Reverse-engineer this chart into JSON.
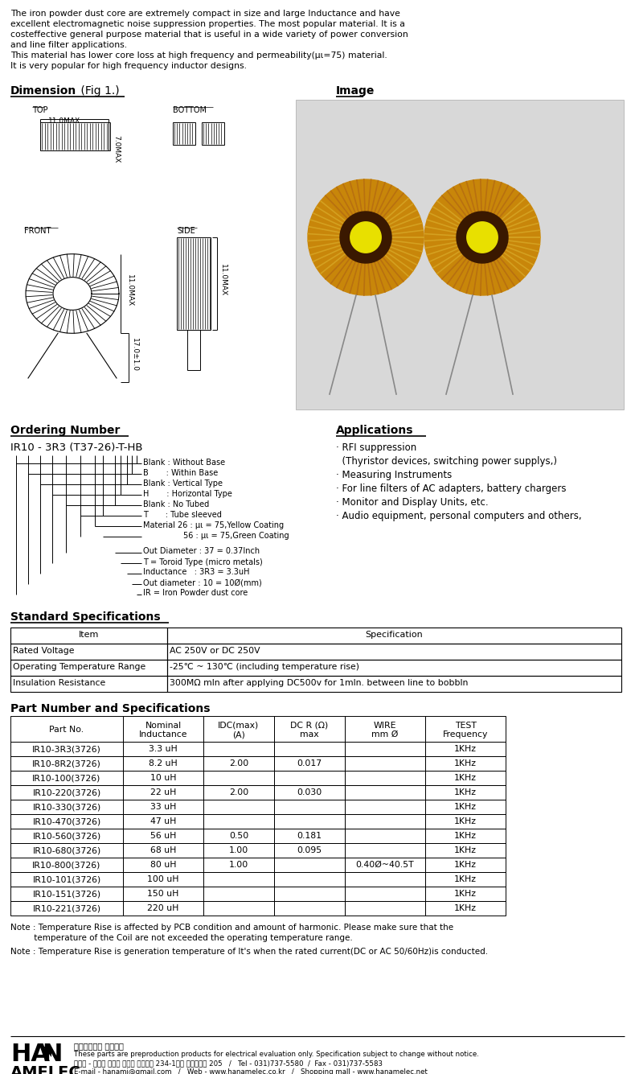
{
  "bg_color": "#ffffff",
  "intro_text": [
    "The iron powder dust core are extremely compact in size and large Inductance and have",
    "excellent electromagnetic noise suppression properties. The most popular material. It is a",
    "costeffective general purpose material that is useful in a wide variety of power conversion",
    "and line filter applications.",
    "This material has lower core loss at high frequency and permeability(μι=75) material.",
    "It is very popular for high frequency inductor designs."
  ],
  "section_dimension": "Dimension  (Fig 1.)",
  "section_image": "Image",
  "section_ordering": "Ordering Number",
  "section_applications": "Applications",
  "section_std_spec": "Standard Specifications",
  "section_part_spec": "Part Number and Specifications",
  "ordering_number": "IR10 - 3R3 (T37-26)-T-HB",
  "ordering_lines": [
    "Blank : Without Base",
    "B       : Within Base",
    "Blank : Vertical Type",
    "H       : Horizontal Type",
    "Blank : No Tubed",
    "T       : Tube sleeved",
    "Material 26 : μι = 75,Yellow Coating",
    "                56 : μι = 75,Green Coating",
    "Out Diameter : 37 = 0.37Inch",
    "T = Toroid Type (micro metals)",
    "Inductance   : 3R3 = 3.3uH",
    "Out diameter : 10 = 10Ø(mm)",
    "IR = Iron Powder dust core"
  ],
  "applications": [
    "· RFI suppression",
    "  (Thyristor devices, switching power supplys,)",
    "· Measuring Instruments",
    "· For line filters of AC adapters, battery chargers",
    "· Monitor and Display Units, etc.",
    "· Audio equipment, personal computers and others,"
  ],
  "std_spec_headers": [
    "Item",
    "Specification"
  ],
  "std_spec_rows": [
    [
      "Rated Voltage",
      "AC 250V or DC 250V"
    ],
    [
      "Operating Temperature Range",
      "-25℃ ~ 130℃ (including temperature rise)"
    ],
    [
      "Insulation Resistance",
      "300MΩ mln after applying DC500v for 1mln. between line to bobbln"
    ]
  ],
  "part_headers": [
    "Part No.",
    "Nominal\nInductance",
    "IDC(max)\n(A)",
    "DC R (Ω)\nmax",
    "WIRE\nmm Ø",
    "TEST\nFrequency"
  ],
  "part_rows": [
    [
      "IR10-3R3(3726)",
      "3.3 uH",
      "",
      "",
      "",
      "1KHz"
    ],
    [
      "IR10-8R2(3726)",
      "8.2 uH",
      "2.00",
      "0.017",
      "",
      "1KHz"
    ],
    [
      "IR10-100(3726)",
      "10 uH",
      "",
      "",
      "",
      "1KHz"
    ],
    [
      "IR10-220(3726)",
      "22 uH",
      "2.00",
      "0.030",
      "",
      "1KHz"
    ],
    [
      "IR10-330(3726)",
      "33 uH",
      "",
      "",
      "",
      "1KHz"
    ],
    [
      "IR10-470(3726)",
      "47 uH",
      "",
      "",
      "",
      "1KHz"
    ],
    [
      "IR10-560(3726)",
      "56 uH",
      "0.50",
      "0.181",
      "",
      "1KHz"
    ],
    [
      "IR10-680(3726)",
      "68 uH",
      "1.00",
      "0.095",
      "",
      "1KHz"
    ],
    [
      "IR10-800(3726)",
      "80 uH",
      "1.00",
      "",
      "0.40Ø~40.5T",
      "1KHz"
    ],
    [
      "IR10-101(3726)",
      "100 uH",
      "",
      "",
      "",
      "1KHz"
    ],
    [
      "IR10-151(3726)",
      "150 uH",
      "",
      "",
      "",
      "1KHz"
    ],
    [
      "IR10-221(3726)",
      "220 uH",
      "",
      "",
      "",
      "1KHz"
    ]
  ],
  "note1a": "Note : Temperature Rise is affected by PCB condition and amount of harmonic. Please make sure that the",
  "note1b": "         temperature of the Coil are not exceeded the operating temperature range.",
  "note2": "Note : Temperature Rise is generation temperature of It's when the rated current(DC or AC 50/60Hz)is conducted.",
  "footer_company_kr": "전자부품전문 하남전자",
  "footer_line1": "These parts are preproduction products for electrical evaluation only. Specification subject to change without notice.",
  "footer_line2": "주소지 - 경기도 성남시 중원구 상대원동 234-1번지 포스테코노 205   /   Tel - 031)737-5580  /  Fax - 031)737-5583",
  "footer_line3": "E-mail - hanamj@gmail.com   /   Web - www.hanamelec.co.kr   /   Shopping mall - www.hanamelec.net"
}
